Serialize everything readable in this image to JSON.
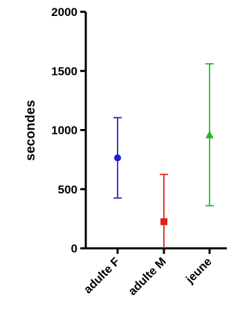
{
  "chart_data": {
    "type": "scatter",
    "title": "",
    "xlabel": "",
    "ylabel": "secondes",
    "ylim": [
      0,
      2000
    ],
    "yticks": [
      0,
      500,
      1000,
      1500,
      2000
    ],
    "categories": [
      "adulte F",
      "adulte M",
      "jeune"
    ],
    "series": [
      {
        "category": "adulte F",
        "mean": 765,
        "lower": 425,
        "upper": 1105,
        "marker": "circle",
        "color": "#1f1fd6"
      },
      {
        "category": "adulte M",
        "mean": 225,
        "lower": 0,
        "upper": 625,
        "marker": "square",
        "color": "#e01f1f"
      },
      {
        "category": "jeune",
        "mean": 960,
        "lower": 360,
        "upper": 1560,
        "marker": "triangle",
        "color": "#22b822"
      }
    ],
    "grid": false,
    "legend": "none"
  }
}
